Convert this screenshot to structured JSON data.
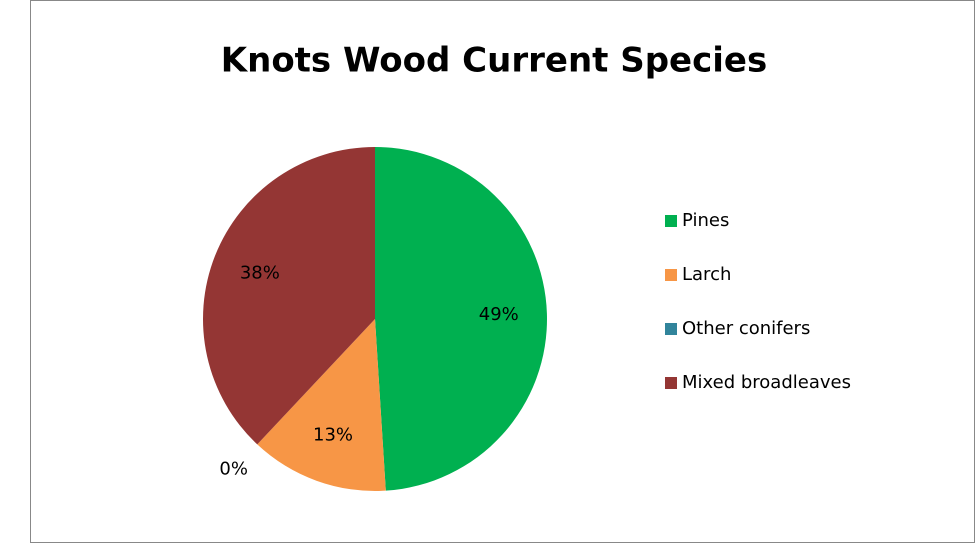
{
  "chart_data": {
    "type": "pie",
    "title": "Knots Wood Current Species",
    "categories": [
      "Pines",
      "Larch",
      "Other conifers",
      "Mixed broadleaves"
    ],
    "values": [
      49,
      13,
      0,
      38
    ],
    "value_labels": [
      "49%",
      "13%",
      "0%",
      "38%"
    ],
    "colors": [
      "#00b050",
      "#f79646",
      "#31849b",
      "#943634"
    ],
    "legend": "right"
  }
}
